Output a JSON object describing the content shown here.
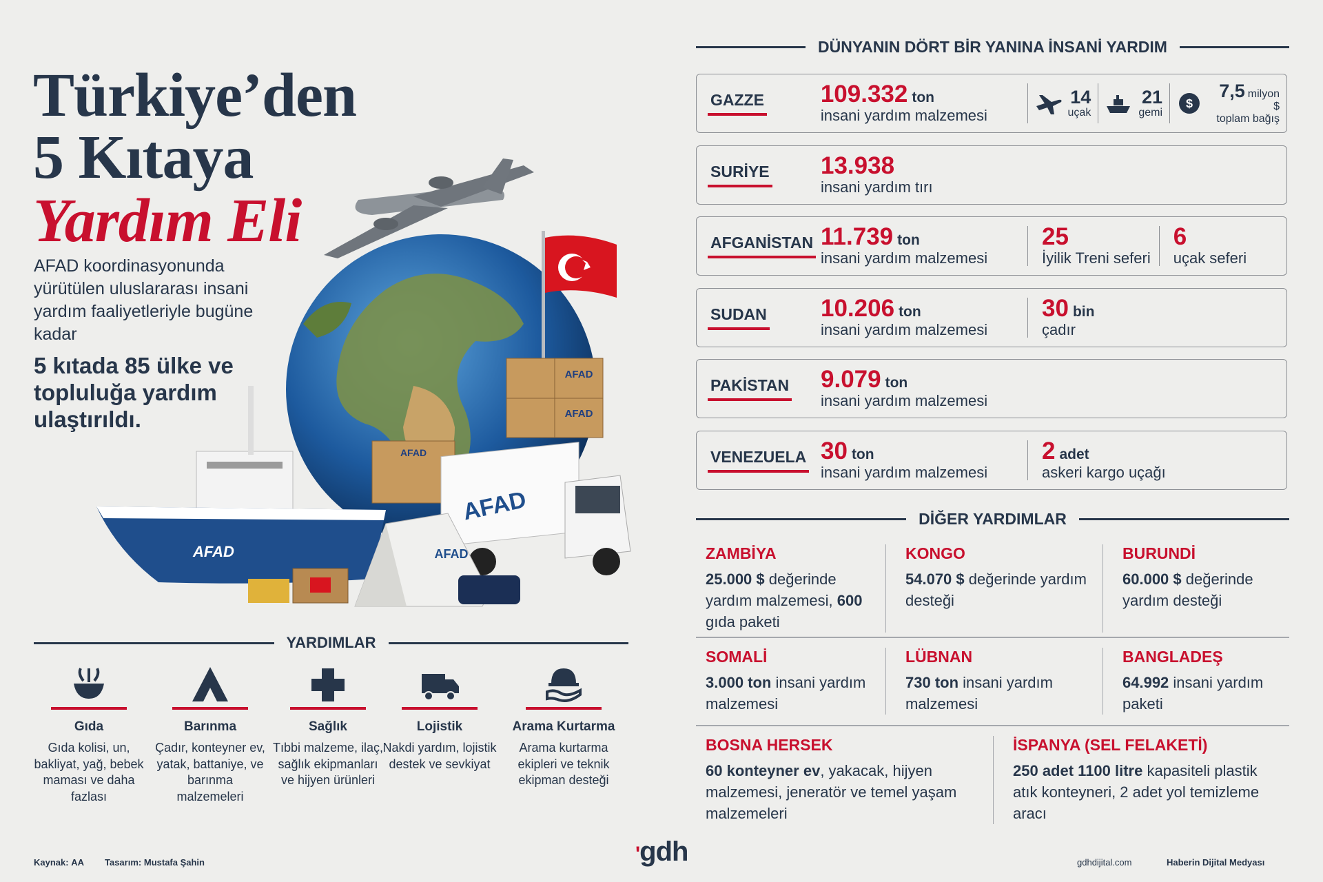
{
  "header": {
    "title_line1": "Türkiye’den",
    "title_line2": "5 Kıtaya",
    "title_line3": "Yardım Eli",
    "intro": "AFAD koordinasyonunda yürütülen uluslararası insani yardım faaliyetleriyle bugüne kadar",
    "highlight": "5 kıtada 85 ülke ve topluluğa yardım ulaştırıldı."
  },
  "illustration": {
    "brand": "AFAD"
  },
  "aid_types": {
    "title": "YARDIMLAR",
    "items": [
      {
        "name": "Gıda",
        "description": "Gıda kolisi, un, bakliyat, yağ, bebek maması ve daha fazlası"
      },
      {
        "name": "Barınma",
        "description": "Çadır, konteyner ev, yatak, battaniye, ve barınma malzemeleri"
      },
      {
        "name": "Sağlık",
        "description": "Tıbbi malzeme, ilaç, sağlık ekipmanları ve hijyen ürünleri"
      },
      {
        "name": "Lojistik",
        "description": "Nakdi yardım, lojistik destek ve sevkiyat"
      },
      {
        "name": "Arama Kurtarma",
        "description": "Arama kurtarma ekipleri ve teknik ekipman desteği"
      }
    ]
  },
  "countries": {
    "title": "DÜNYANIN DÖRT BİR YANINA İNSANİ YARDIM",
    "rows": [
      {
        "name": "GAZZE",
        "stats": [
          {
            "value": "109.332",
            "unit": "ton",
            "label": "insani yardım malzemesi"
          }
        ],
        "extras": [
          {
            "value": "14",
            "label": "uçak"
          },
          {
            "value": "21",
            "label": "gemi"
          },
          {
            "value": "7,5",
            "unit": "milyon $",
            "label": "toplam bağış"
          }
        ]
      },
      {
        "name": "SURİYE",
        "stats": [
          {
            "value": "13.938",
            "label": "insani yardım tırı"
          }
        ]
      },
      {
        "name": "AFGANİSTAN",
        "stats": [
          {
            "value": "11.739",
            "unit": "ton",
            "label": "insani yardım malzemesi"
          },
          {
            "value": "25",
            "label": "İyilik Treni seferi"
          },
          {
            "value": "6",
            "label": "uçak seferi"
          }
        ]
      },
      {
        "name": "SUDAN",
        "stats": [
          {
            "value": "10.206",
            "unit": "ton",
            "label": "insani yardım malzemesi"
          },
          {
            "value": "30",
            "unit": "bin",
            "label": "çadır"
          }
        ]
      },
      {
        "name": "PAKİSTAN",
        "stats": [
          {
            "value": "9.079",
            "unit": "ton",
            "label": "insani yardım malzemesi"
          }
        ]
      },
      {
        "name": "VENEZUELA",
        "stats": [
          {
            "value": "30",
            "unit": "ton",
            "label": "insani yardım malzemesi"
          },
          {
            "value": "2",
            "unit": "adet",
            "label": "askeri kargo uçağı"
          }
        ]
      }
    ]
  },
  "other": {
    "title": "DİĞER YARDIMLAR",
    "items": [
      {
        "name": "ZAMBİYA",
        "segments": [
          {
            "text": "25.000 $",
            "bold": true
          },
          {
            "text": " değerinde yardım malzemesi, ",
            "bold": false
          },
          {
            "text": "600",
            "bold": true
          },
          {
            "text": " gıda paketi",
            "bold": false
          }
        ]
      },
      {
        "name": "KONGO",
        "segments": [
          {
            "text": "54.070 $",
            "bold": true
          },
          {
            "text": " değerinde yardım desteği",
            "bold": false
          }
        ]
      },
      {
        "name": "BURUNDİ",
        "segments": [
          {
            "text": "60.000 $",
            "bold": true
          },
          {
            "text": " değerinde yardım desteği",
            "bold": false
          }
        ]
      },
      {
        "name": "SOMALİ",
        "segments": [
          {
            "text": "3.000 ton",
            "bold": true
          },
          {
            "text": " insani yardım malzemesi",
            "bold": false
          }
        ]
      },
      {
        "name": "LÜBNAN",
        "segments": [
          {
            "text": "730 ton",
            "bold": true
          },
          {
            "text": " insani yardım malzemesi",
            "bold": false
          }
        ]
      },
      {
        "name": "BANGLADEŞ",
        "segments": [
          {
            "text": "64.992",
            "bold": true
          },
          {
            "text": " insani yardım paketi",
            "bold": false
          }
        ]
      },
      {
        "name": "BOSNA HERSEK",
        "segments": [
          {
            "text": "60 konteyner ev",
            "bold": true
          },
          {
            "text": ", yakacak, hijyen malzemesi, jeneratör ve temel yaşam malzemeleri",
            "bold": false
          }
        ]
      },
      {
        "name": "İSPANYA (SEL FELAKETİ)",
        "segments": [
          {
            "text": "250 adet 1100 litre",
            "bold": true
          },
          {
            "text": " kapasiteli plastik atık konteyneri, 2 adet yol temizleme aracı",
            "bold": false
          }
        ]
      }
    ]
  },
  "footer": {
    "source_label": "Kaynak:",
    "source": "AA",
    "design_label": "Tasarım:",
    "designer": "Mustafa Şahin",
    "logo": "gdh",
    "website": "gdhdijital.com",
    "tagline": "Haberin Dijital Medyası"
  }
}
